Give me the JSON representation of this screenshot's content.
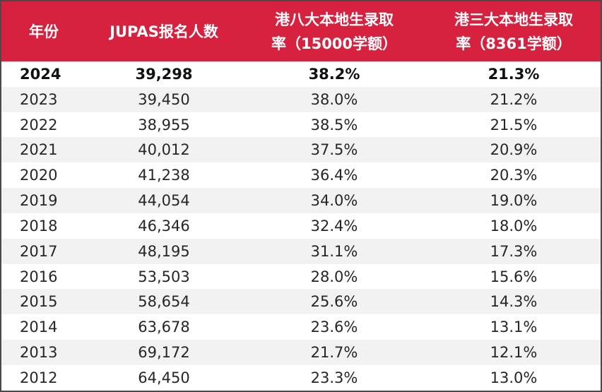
{
  "table": {
    "headers": [
      {
        "line1": "年份",
        "line2": ""
      },
      {
        "line1": "JUPAS报名人数",
        "line2": ""
      },
      {
        "line1": "港八大本地生录取",
        "line2": "率（15000学额）"
      },
      {
        "line1": "港三大本地生录取",
        "line2": "率（8361学额）"
      }
    ],
    "rows": [
      {
        "year": "2024",
        "applicants": "39,298",
        "rate8": "38.2%",
        "rate3": "21.3%"
      },
      {
        "year": "2023",
        "applicants": "39,450",
        "rate8": "38.0%",
        "rate3": "21.2%"
      },
      {
        "year": "2022",
        "applicants": "38,955",
        "rate8": "38.5%",
        "rate3": "21.5%"
      },
      {
        "year": "2021",
        "applicants": "40,012",
        "rate8": "37.5%",
        "rate3": "20.9%"
      },
      {
        "year": "2020",
        "applicants": "41,238",
        "rate8": "36.4%",
        "rate3": "20.3%"
      },
      {
        "year": "2019",
        "applicants": "44,054",
        "rate8": "34.0%",
        "rate3": "19.0%"
      },
      {
        "year": "2018",
        "applicants": "46,346",
        "rate8": "32.4%",
        "rate3": "18.0%"
      },
      {
        "year": "2017",
        "applicants": "48,195",
        "rate8": "31.1%",
        "rate3": "17.3%"
      },
      {
        "year": "2016",
        "applicants": "53,503",
        "rate8": "28.0%",
        "rate3": "15.6%"
      },
      {
        "year": "2015",
        "applicants": "58,654",
        "rate8": "25.6%",
        "rate3": "14.3%"
      },
      {
        "year": "2014",
        "applicants": "63,678",
        "rate8": "23.6%",
        "rate3": "13.1%"
      },
      {
        "year": "2013",
        "applicants": "69,172",
        "rate8": "21.7%",
        "rate3": "12.1%"
      },
      {
        "year": "2012",
        "applicants": "64,450",
        "rate8": "23.3%",
        "rate3": "13.0%"
      }
    ]
  },
  "colors": {
    "header_bg": "#d6213f",
    "header_text": "#ffffff",
    "stripe": "#f2f2f2",
    "border": "#4a4a4a"
  }
}
